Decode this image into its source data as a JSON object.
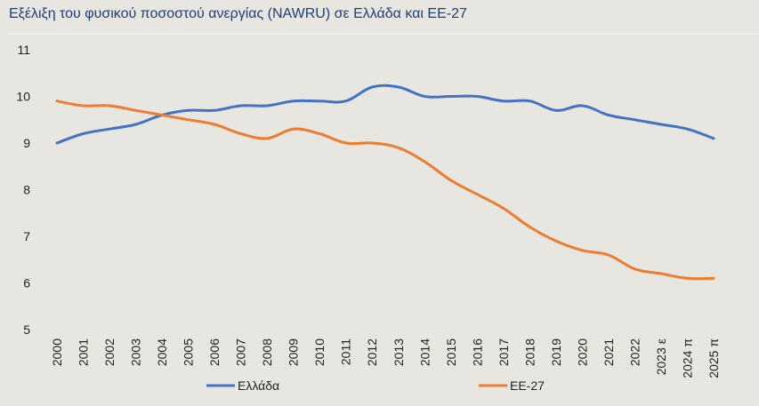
{
  "title": "Εξέλιξη του φυσικού ποσοστού ανεργίας (NAWRU) σε Ελλάδα και ΕΕ-27",
  "chart_data": {
    "type": "line",
    "title": "Εξέλιξη του φυσικού ποσοστού ανεργίας (NAWRU) σε Ελλάδα και ΕΕ-27",
    "categories": [
      "2000",
      "2001",
      "2002",
      "2003",
      "2004",
      "2005",
      "2006",
      "2007",
      "2008",
      "2009",
      "2010",
      "2011",
      "2012",
      "2013",
      "2014",
      "2015",
      "2016",
      "2017",
      "2018",
      "2019",
      "2020",
      "2021",
      "2022",
      "2023 ε",
      "2024 π",
      "2025 π"
    ],
    "ylim": [
      5,
      11
    ],
    "yticks": [
      5,
      6,
      7,
      8,
      9,
      10,
      11
    ],
    "grid": false,
    "legend_position": "bottom",
    "series": [
      {
        "name": "Ελλάδα",
        "color": "#4472c4",
        "values": [
          9.0,
          9.2,
          9.3,
          9.4,
          9.6,
          9.7,
          9.7,
          9.8,
          9.8,
          9.9,
          9.9,
          9.9,
          10.2,
          10.2,
          10.0,
          10.0,
          10.0,
          9.9,
          9.9,
          9.7,
          9.8,
          9.6,
          9.5,
          9.4,
          9.3,
          9.1
        ]
      },
      {
        "name": "ΕΕ-27",
        "color": "#ed7d31",
        "values": [
          9.9,
          9.8,
          9.8,
          9.7,
          9.6,
          9.5,
          9.4,
          9.2,
          9.1,
          9.3,
          9.2,
          9.0,
          9.0,
          8.9,
          8.6,
          8.2,
          7.9,
          7.6,
          7.2,
          6.9,
          6.7,
          6.6,
          6.3,
          6.2,
          6.1,
          6.1
        ]
      }
    ]
  }
}
